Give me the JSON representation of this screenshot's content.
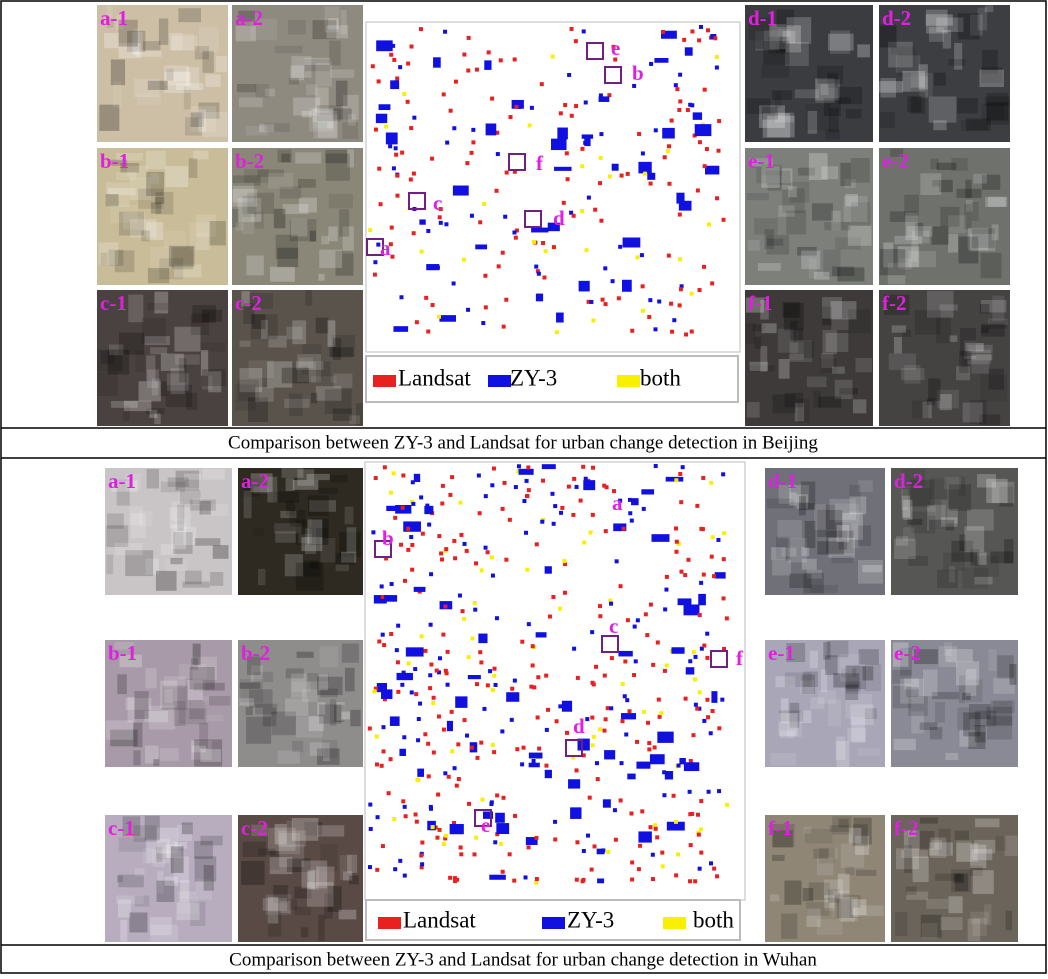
{
  "panels": [
    {
      "tiles": [
        {
          "label": "a-1"
        },
        {
          "label": "a-2"
        },
        {
          "label": "b-1"
        },
        {
          "label": "b-2"
        },
        {
          "label": "c-1"
        },
        {
          "label": "c-2"
        },
        {
          "label": "d-1"
        },
        {
          "label": "d-2"
        },
        {
          "label": "e-1"
        },
        {
          "label": "e-2"
        },
        {
          "label": "f-1"
        },
        {
          "label": "f-2"
        }
      ],
      "map_labels": [
        "e",
        "b",
        "f",
        "c",
        "d",
        "a"
      ],
      "legend": [
        "Landsat",
        "ZY-3",
        "both"
      ],
      "caption": "Comparison between ZY-3 and Landsat for urban change detection in Beijing"
    },
    {
      "tiles": [
        {
          "label": "a-1"
        },
        {
          "label": "a-2"
        },
        {
          "label": "b-1"
        },
        {
          "label": "b-2"
        },
        {
          "label": "c-1"
        },
        {
          "label": "c-2"
        },
        {
          "label": "d-1"
        },
        {
          "label": "d-2"
        },
        {
          "label": "e-1"
        },
        {
          "label": "e-2"
        },
        {
          "label": "f-1"
        },
        {
          "label": "f-2"
        }
      ],
      "map_labels": [
        "a",
        "b",
        "c",
        "f",
        "d",
        "e"
      ],
      "legend": [
        "Landsat",
        "ZY-3",
        "both"
      ],
      "caption": "Comparison between ZY-3 and Landsat for urban change detection in Wuhan"
    }
  ]
}
